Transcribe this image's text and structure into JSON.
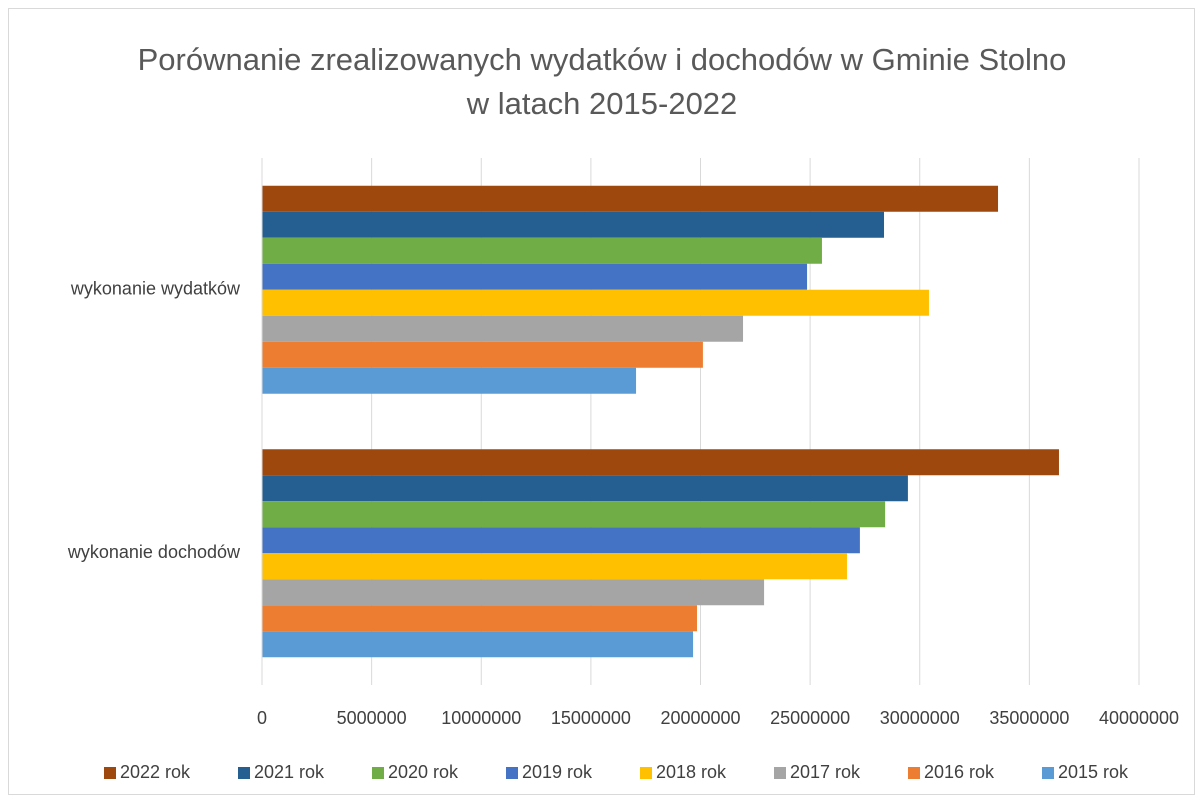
{
  "chart_data": {
    "type": "hbar",
    "title": "Porównanie zrealizowanych wydatków i dochodów w Gminie Stolno w latach 2015-2022",
    "categories": [
      "wykonanie wydatków",
      "wykonanie dochodów"
    ],
    "series": [
      {
        "name": "2022 rok",
        "color": "#9e480e",
        "values": [
          33570000,
          36350000
        ]
      },
      {
        "name": "2021 rok",
        "color": "#255e91",
        "values": [
          28370000,
          29460000
        ]
      },
      {
        "name": "2020 rok",
        "color": "#70ad47",
        "values": [
          25540000,
          28420000
        ]
      },
      {
        "name": "2019 rok",
        "color": "#4472c4",
        "values": [
          24860000,
          27270000
        ]
      },
      {
        "name": "2018 rok",
        "color": "#ffc000",
        "values": [
          30420000,
          26680000
        ]
      },
      {
        "name": "2017 rok",
        "color": "#a5a5a5",
        "values": [
          21940000,
          22900000
        ]
      },
      {
        "name": "2016 rok",
        "color": "#ed7d31",
        "values": [
          20110000,
          19840000
        ]
      },
      {
        "name": "2015 rok",
        "color": "#5b9bd5",
        "values": [
          17060000,
          19660000
        ]
      }
    ],
    "xlim": [
      0,
      40000000
    ],
    "xticks": [
      0,
      5000000,
      10000000,
      15000000,
      20000000,
      25000000,
      30000000,
      35000000,
      40000000
    ],
    "grid": true,
    "legend": "bottom"
  }
}
